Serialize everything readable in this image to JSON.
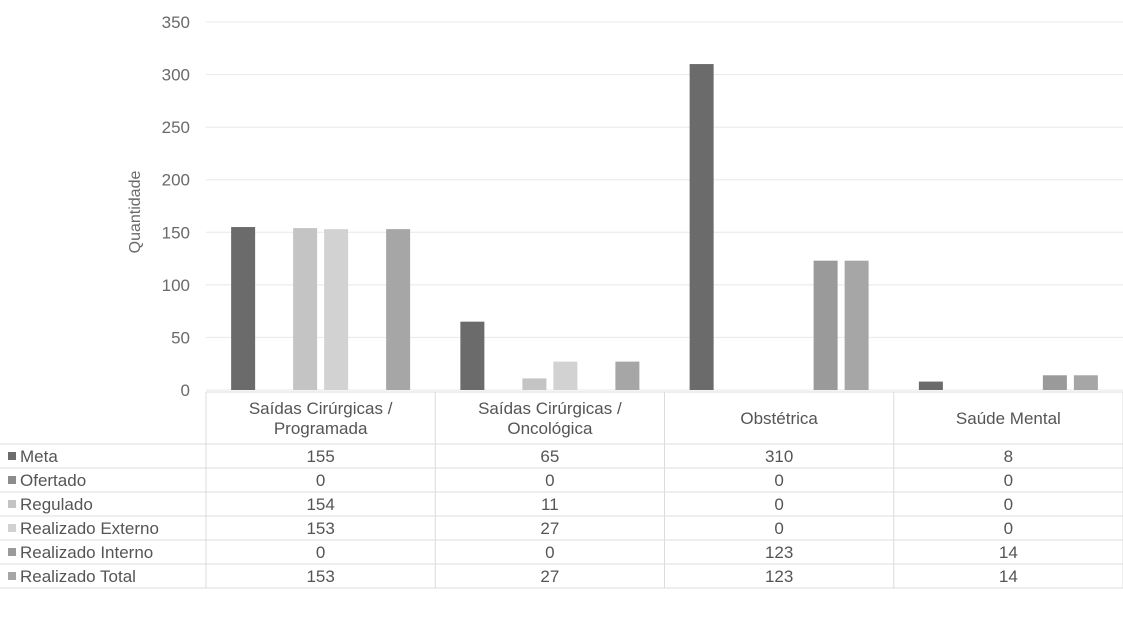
{
  "chart_data": {
    "type": "bar",
    "title": "",
    "xlabel": "",
    "ylabel": "Quantidade",
    "ylim": [
      0,
      350
    ],
    "yticks": [
      0,
      50,
      100,
      150,
      200,
      250,
      300,
      350
    ],
    "grid": true,
    "legend_position": "bottom-left data table",
    "categories": [
      [
        "Saídas Cirúrgicas /",
        "Programada"
      ],
      [
        "Saídas Cirúrgicas /",
        "Oncológica"
      ],
      [
        "Obstétrica"
      ],
      [
        "Saúde Mental"
      ]
    ],
    "series": [
      {
        "name": "Meta",
        "values": [
          155,
          65,
          310,
          8
        ],
        "color": "#6b6b6b"
      },
      {
        "name": "Ofertado",
        "values": [
          0,
          0,
          0,
          0
        ],
        "color": "#8c8c8c"
      },
      {
        "name": "Regulado",
        "values": [
          154,
          11,
          0,
          0
        ],
        "color": "#c4c4c4"
      },
      {
        "name": "Realizado Externo",
        "values": [
          153,
          27,
          0,
          0
        ],
        "color": "#d2d2d2"
      },
      {
        "name": "Realizado Interno",
        "values": [
          0,
          0,
          123,
          14
        ],
        "color": "#9a9a9a"
      },
      {
        "name": "Realizado Total",
        "values": [
          153,
          27,
          123,
          14
        ],
        "color": "#a6a6a6"
      }
    ]
  }
}
